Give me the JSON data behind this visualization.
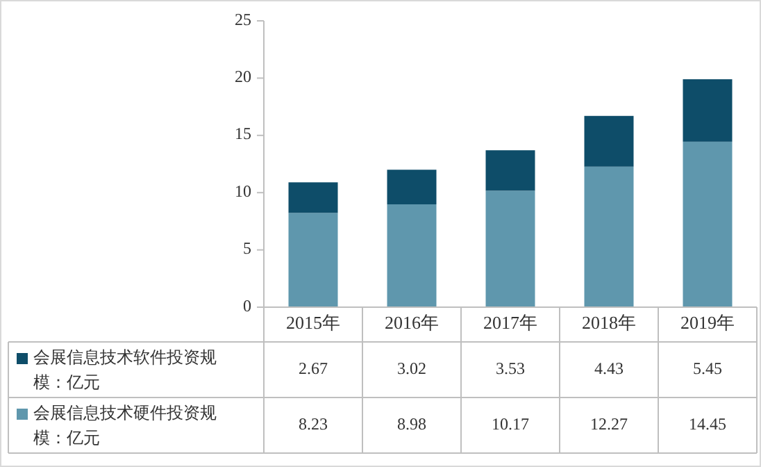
{
  "chart_data": {
    "type": "bar",
    "stacked": true,
    "categories": [
      "2015年",
      "2016年",
      "2017年",
      "2018年",
      "2019年"
    ],
    "series": [
      {
        "name": "会展信息技术硬件投资规模：亿元",
        "color": "#5f97ad",
        "values": [
          8.23,
          8.98,
          10.17,
          12.27,
          14.45
        ]
      },
      {
        "name": "会展信息技术软件投资规模：亿元",
        "color": "#0e4d69",
        "values": [
          2.67,
          3.02,
          3.53,
          4.43,
          5.45
        ]
      }
    ],
    "ylim": [
      0,
      25
    ],
    "yticks": [
      0,
      5,
      10,
      15,
      20,
      25
    ],
    "data_labels": true,
    "legend": "bottom left"
  }
}
